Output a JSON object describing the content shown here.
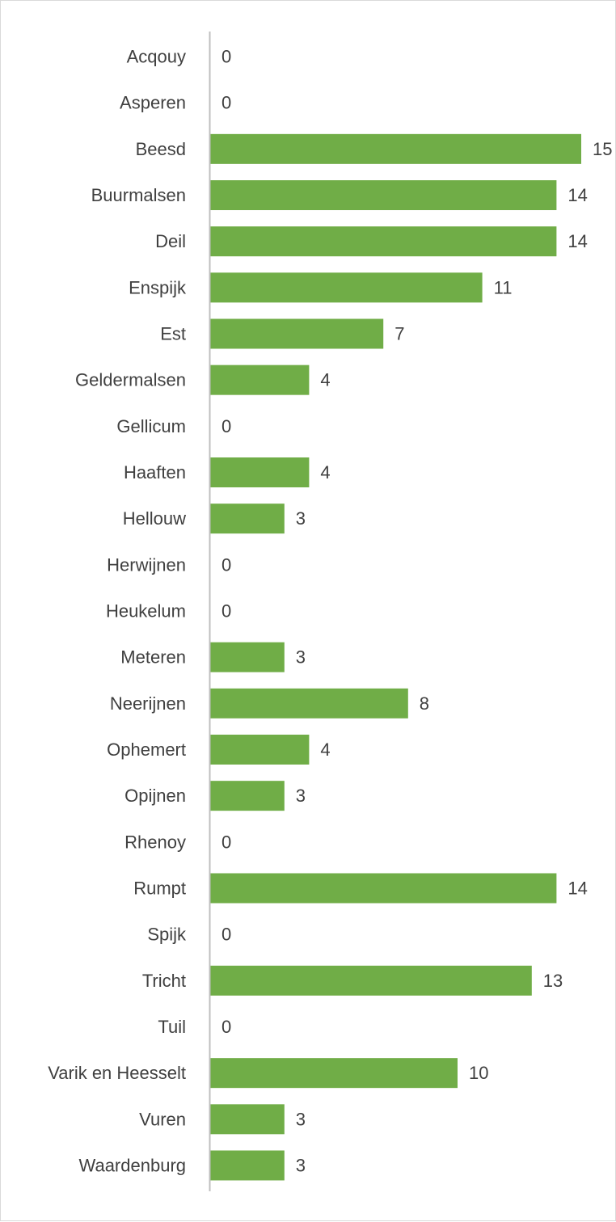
{
  "chart_data": {
    "type": "bar",
    "orientation": "horizontal",
    "categories": [
      "Acqouy",
      "Asperen",
      "Beesd",
      "Buurmalsen",
      "Deil",
      "Enspijk",
      "Est",
      "Geldermalsen",
      "Gellicum",
      "Haaften",
      "Hellouw",
      "Herwijnen",
      "Heukelum",
      "Meteren",
      "Neerijnen",
      "Ophemert",
      "Opijnen",
      "Rhenoy",
      "Rumpt",
      "Spijk",
      "Tricht",
      "Tuil",
      "Varik en Heesselt",
      "Vuren",
      "Waardenburg"
    ],
    "values": [
      0,
      0,
      15,
      14,
      14,
      11,
      7,
      4,
      0,
      4,
      3,
      0,
      0,
      3,
      8,
      4,
      3,
      0,
      14,
      0,
      13,
      0,
      10,
      3,
      3
    ],
    "title": "",
    "xlabel": "",
    "ylabel": "",
    "xlim": [
      0,
      15
    ],
    "grid": false,
    "legend": "none",
    "data_labels": true,
    "bar_color": "#70ad47",
    "axis_color": "#bfbfbf",
    "label_color": "#404040"
  }
}
